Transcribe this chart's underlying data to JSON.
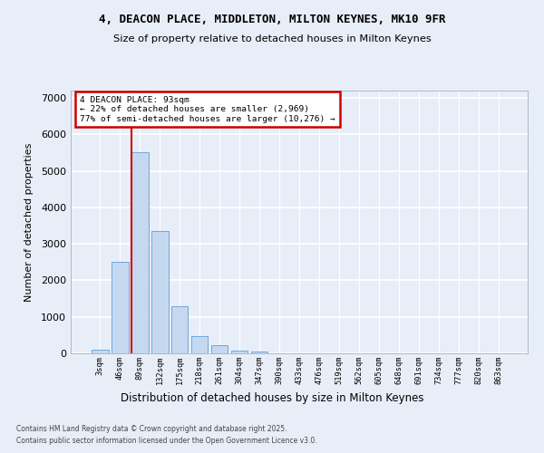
{
  "title_line1": "4, DEACON PLACE, MIDDLETON, MILTON KEYNES, MK10 9FR",
  "title_line2": "Size of property relative to detached houses in Milton Keynes",
  "xlabel": "Distribution of detached houses by size in Milton Keynes",
  "ylabel": "Number of detached properties",
  "categories": [
    "3sqm",
    "46sqm",
    "89sqm",
    "132sqm",
    "175sqm",
    "218sqm",
    "261sqm",
    "304sqm",
    "347sqm",
    "390sqm",
    "433sqm",
    "476sqm",
    "519sqm",
    "562sqm",
    "605sqm",
    "648sqm",
    "691sqm",
    "734sqm",
    "777sqm",
    "820sqm",
    "863sqm"
  ],
  "values": [
    100,
    2500,
    5500,
    3350,
    1300,
    480,
    220,
    80,
    50,
    0,
    0,
    0,
    0,
    0,
    0,
    0,
    0,
    0,
    0,
    0,
    0
  ],
  "bar_color": "#c5d8f0",
  "bar_edge_color": "#5a9fd4",
  "vline_color": "#cc0000",
  "vline_x": 1.575,
  "annotation_title": "4 DEACON PLACE: 93sqm",
  "annotation_line1": "← 22% of detached houses are smaller (2,969)",
  "annotation_line2": "77% of semi-detached houses are larger (10,276) →",
  "ylim": [
    0,
    7200
  ],
  "yticks": [
    0,
    1000,
    2000,
    3000,
    4000,
    5000,
    6000,
    7000
  ],
  "footer_line1": "Contains HM Land Registry data © Crown copyright and database right 2025.",
  "footer_line2": "Contains public sector information licensed under the Open Government Licence v3.0.",
  "bg_color": "#e8eef8",
  "grid_color": "#ffffff"
}
